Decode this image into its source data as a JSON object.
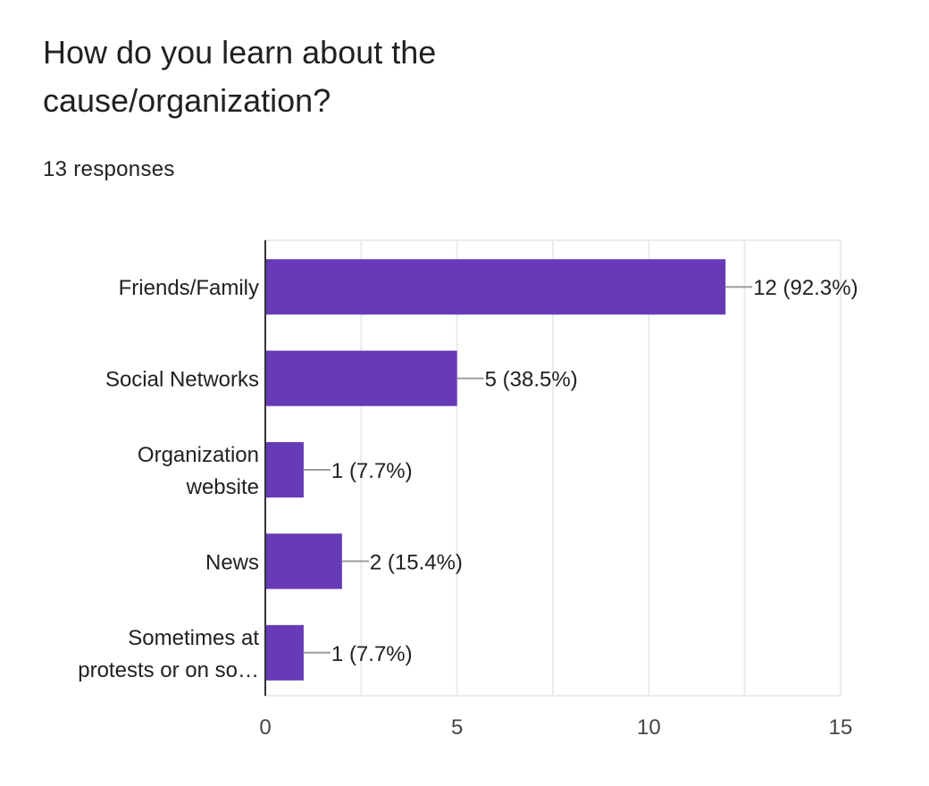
{
  "question": {
    "title": "How do you learn about the cause/organization?",
    "responses": "13 responses"
  },
  "colors": {
    "bar": "#673ab7",
    "grid": "#ebebeb",
    "axis": "#333333",
    "leader": "#9e9e9e",
    "text": "#202124"
  },
  "chart_data": {
    "type": "bar",
    "orientation": "horizontal",
    "categories": [
      [
        "Friends/Family"
      ],
      [
        "Social Networks"
      ],
      [
        "Organization",
        "website"
      ],
      [
        "News"
      ],
      [
        "Sometimes at",
        "protests or on so…"
      ]
    ],
    "values": [
      12,
      5,
      1,
      2,
      1
    ],
    "data_labels": [
      "12 (92.3%)",
      "5 (38.5%)",
      "1 (7.7%)",
      "2 (15.4%)",
      "1 (7.7%)"
    ],
    "xlim": [
      0,
      15
    ],
    "x_ticks": [
      "0",
      "5",
      "10",
      "15"
    ],
    "x_tick_values": [
      0,
      5,
      10,
      15
    ],
    "minor_grid_step": 2.5,
    "grid": true,
    "xlabel": "",
    "ylabel": ""
  }
}
